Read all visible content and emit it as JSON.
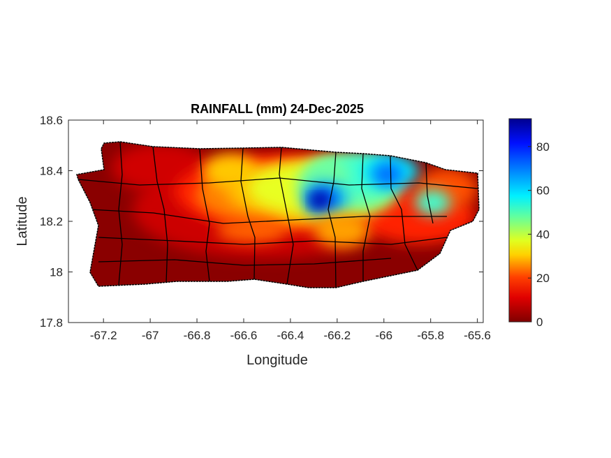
{
  "chart_data": {
    "type": "heatmap",
    "title": "RAINFALL (mm) 24-Dec-2025",
    "xlabel": "Longitude",
    "ylabel": "Latitude",
    "xlim": [
      -67.35,
      -65.575
    ],
    "ylim": [
      17.8,
      18.6
    ],
    "xticks": [
      -67.2,
      -67,
      -66.8,
      -66.6,
      -66.4,
      -66.2,
      -66,
      -65.8,
      -65.6
    ],
    "xtick_labels": [
      "-67.2",
      "-67",
      "-66.8",
      "-66.6",
      "-66.4",
      "-66.2",
      "-66",
      "-65.8",
      "-65.6"
    ],
    "yticks": [
      17.8,
      18,
      18.2,
      18.4,
      18.6
    ],
    "ytick_labels": [
      "17.8",
      "18",
      "18.2",
      "18.4",
      "18.6"
    ],
    "grid": false,
    "colormap": "jet",
    "colorbar": {
      "range": [
        0,
        92.7
      ],
      "ticks": [
        0,
        20,
        40,
        60,
        80
      ],
      "tick_labels": [
        "0",
        "20",
        "40",
        "60",
        "80"
      ],
      "colors": [
        "#800000",
        "#ff0000",
        "#ffff00",
        "#00ffff",
        "#0000ff",
        "#00008f"
      ]
    },
    "region": "Puerto Rico municipalities",
    "features": [
      {
        "description": "maximum",
        "lon": -66.27,
        "lat": 18.28,
        "value": 92
      },
      {
        "description": "secondary maximum",
        "lon": -66.0,
        "lat": 18.35,
        "value": 70
      }
    ]
  }
}
